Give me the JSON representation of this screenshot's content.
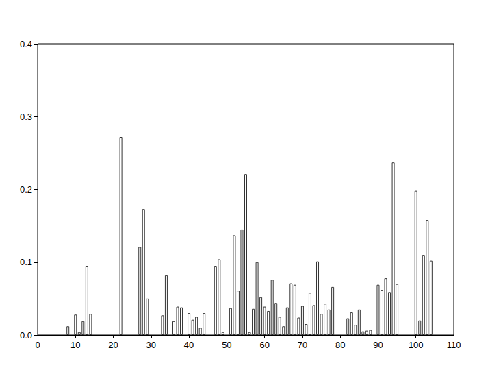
{
  "chart_data": {
    "type": "bar",
    "x": [
      8,
      10,
      11,
      12,
      13,
      14,
      22,
      27,
      28,
      29,
      33,
      34,
      36,
      37,
      38,
      40,
      41,
      42,
      43,
      44,
      47,
      48,
      49,
      51,
      52,
      53,
      54,
      55,
      56,
      57,
      58,
      59,
      60,
      61,
      62,
      63,
      64,
      65,
      66,
      67,
      68,
      69,
      70,
      71,
      72,
      73,
      74,
      75,
      76,
      77,
      78,
      82,
      83,
      84,
      85,
      86,
      87,
      88,
      90,
      91,
      92,
      93,
      94,
      95,
      100,
      101,
      102,
      103,
      104
    ],
    "values": [
      0.012,
      0.028,
      0.004,
      0.019,
      0.095,
      0.029,
      0.272,
      0.121,
      0.173,
      0.05,
      0.027,
      0.082,
      0.019,
      0.039,
      0.038,
      0.03,
      0.021,
      0.025,
      0.01,
      0.03,
      0.095,
      0.104,
      0.004,
      0.037,
      0.137,
      0.061,
      0.145,
      0.221,
      0.004,
      0.036,
      0.1,
      0.052,
      0.039,
      0.033,
      0.076,
      0.044,
      0.025,
      0.012,
      0.038,
      0.071,
      0.069,
      0.024,
      0.04,
      0.015,
      0.058,
      0.041,
      0.101,
      0.029,
      0.043,
      0.035,
      0.066,
      0.023,
      0.031,
      0.014,
      0.035,
      0.005,
      0.006,
      0.007,
      0.069,
      0.062,
      0.078,
      0.059,
      0.237,
      0.07,
      0.198,
      0.02,
      0.11,
      0.158,
      0.102
    ],
    "color": "#ffffff",
    "xlim": [
      0,
      110
    ],
    "xticks": [
      0,
      10,
      20,
      30,
      40,
      50,
      60,
      70,
      80,
      90,
      100,
      110
    ],
    "ylim": [
      0,
      0.4
    ],
    "yticks": [
      {
        "value": 0,
        "label": "0.0"
      },
      {
        "value": 0.1,
        "label": "0.1"
      },
      {
        "value": 0.2,
        "label": "0.2"
      },
      {
        "value": 0.3,
        "label": "0.3"
      },
      {
        "value": 0.4,
        "label": "0.4"
      }
    ],
    "grid": false
  }
}
